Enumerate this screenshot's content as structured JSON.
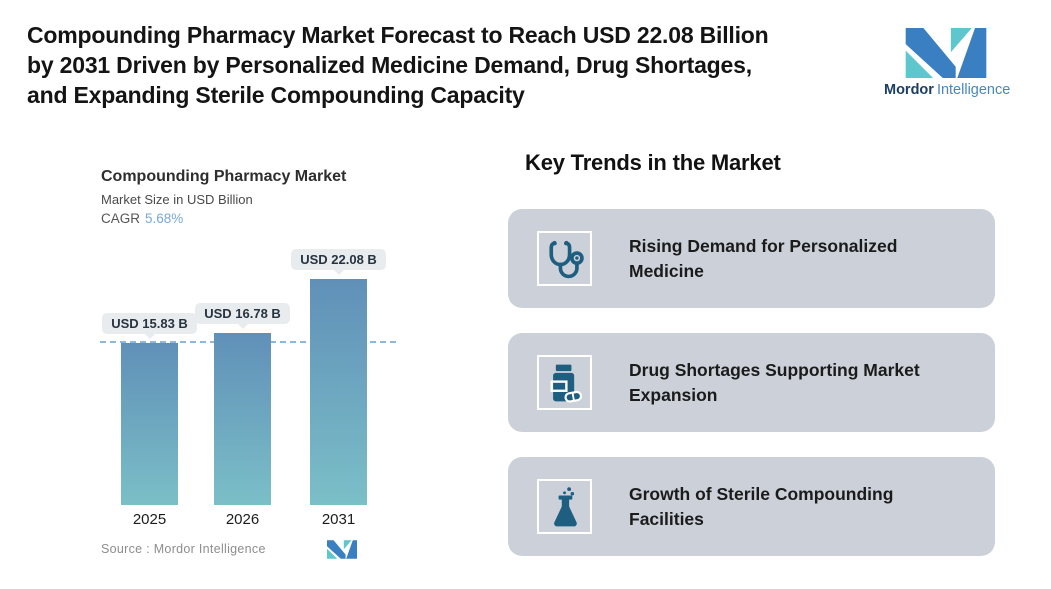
{
  "header": {
    "title_lines": [
      "Compounding Pharmacy Market Forecast to Reach USD 22.08 Billion",
      "by 2031 Driven by Personalized Medicine Demand, Drug Shortages,",
      "and Expanding Sterile Compounding Capacity"
    ],
    "logo": {
      "brand_bold": "Mordor",
      "brand_light": "Intelligence"
    }
  },
  "chart": {
    "title": "Compounding Pharmacy Market",
    "subtitle": "Market Size in USD Billion",
    "cagr_label": "CAGR",
    "cagr_value": "5.68%",
    "source": "Source :  Mordor Intelligence"
  },
  "chart_data": {
    "type": "bar",
    "title": "Compounding Pharmacy Market",
    "subtitle": "Market Size in USD Billion",
    "unit": "USD Billion",
    "categories": [
      "2025",
      "2026",
      "2031"
    ],
    "values": [
      15.83,
      16.78,
      22.08
    ],
    "value_labels": [
      "USD 15.83 B",
      "USD 16.78 B",
      "USD 22.08 B"
    ],
    "cagr_percent": 5.68,
    "reference_line_value": 15.83,
    "ylim": [
      0,
      24
    ],
    "grid": false,
    "legend": "none"
  },
  "trends": {
    "heading": "Key Trends in the Market",
    "cards": [
      {
        "icon": "stethoscope-icon",
        "lines": [
          "Rising Demand for Personalized",
          "Medicine"
        ]
      },
      {
        "icon": "pill-bottle-icon",
        "lines": [
          "Drug Shortages Supporting Market",
          "Expansion"
        ]
      },
      {
        "icon": "flask-icon",
        "lines": [
          "Growth of Sterile Compounding",
          "Facilities"
        ]
      }
    ]
  },
  "colors": {
    "bar_gradient_top": "#6090b8",
    "bar_gradient_bottom": "#7bbfc7",
    "reference_line": "#8fb7da",
    "tooltip_bg": "#e8ecee",
    "card_bg": "#ccd1d9",
    "trend_icon": "#1d5e81",
    "cagr_value": "#77a9d9",
    "logo_blue": "#3a7fc2",
    "logo_teal": "#5ec6cd",
    "logo_text_dark": "#1c3e63",
    "logo_text_light": "#4886bf"
  }
}
